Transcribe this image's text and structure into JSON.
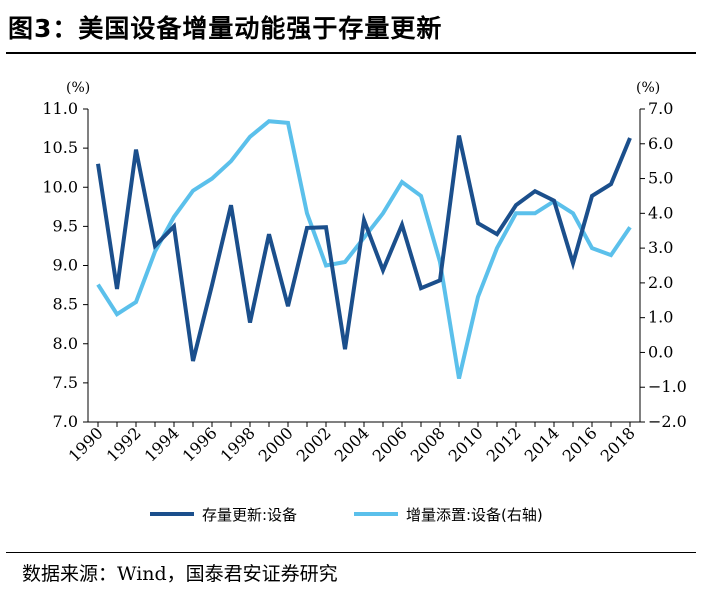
{
  "title": "图3：美国设备增量动能强于存量更新",
  "source": "数据来源：Wind，国泰君安证券研究",
  "chart_data": {
    "type": "line",
    "x": [
      1990,
      1991,
      1992,
      1993,
      1994,
      1995,
      1996,
      1997,
      1998,
      1999,
      2000,
      2001,
      2002,
      2003,
      2004,
      2005,
      2006,
      2007,
      2008,
      2009,
      2010,
      2011,
      2012,
      2013,
      2014,
      2015,
      2016,
      2017,
      2018
    ],
    "x_tick_labels": [
      "1990",
      "1992",
      "1994",
      "1996",
      "1998",
      "2000",
      "2002",
      "2004",
      "2006",
      "2008",
      "2010",
      "2012",
      "2014",
      "2016",
      "2018"
    ],
    "left_axis": {
      "unit": "(%)",
      "ylim": [
        7.0,
        11.0
      ],
      "tick_labels": [
        "7.0",
        "7.5",
        "8.0",
        "8.5",
        "9.0",
        "9.5",
        "10.0",
        "10.5",
        "11.0"
      ]
    },
    "right_axis": {
      "unit": "(%)",
      "ylim": [
        -2.0,
        7.0
      ],
      "tick_labels": [
        "−2.0",
        "−1.0",
        "0.0",
        "1.0",
        "2.0",
        "3.0",
        "4.0",
        "5.0",
        "6.0",
        "7.0"
      ]
    },
    "series": [
      {
        "name": "存量更新:设备",
        "axis": "left",
        "color": "#1b4f8c",
        "values": [
          10.3,
          8.7,
          10.48,
          9.25,
          9.5,
          7.78,
          8.75,
          9.77,
          8.27,
          9.4,
          8.48,
          9.48,
          9.49,
          7.93,
          9.58,
          8.94,
          9.52,
          8.71,
          8.81,
          10.66,
          9.54,
          9.4,
          9.77,
          9.95,
          9.83,
          9.03,
          9.89,
          10.04,
          10.63
        ]
      },
      {
        "name": "增量添置:设备(右轴)",
        "axis": "right",
        "color": "#5bc0eb",
        "values": [
          1.95,
          1.1,
          1.45,
          2.9,
          3.9,
          4.65,
          5.0,
          5.5,
          6.2,
          6.65,
          6.6,
          4.0,
          2.5,
          2.6,
          3.3,
          4.0,
          4.9,
          4.5,
          2.6,
          -0.75,
          1.6,
          3.0,
          4.0,
          4.0,
          4.35,
          4.0,
          3.0,
          2.8,
          3.6
        ]
      }
    ]
  }
}
